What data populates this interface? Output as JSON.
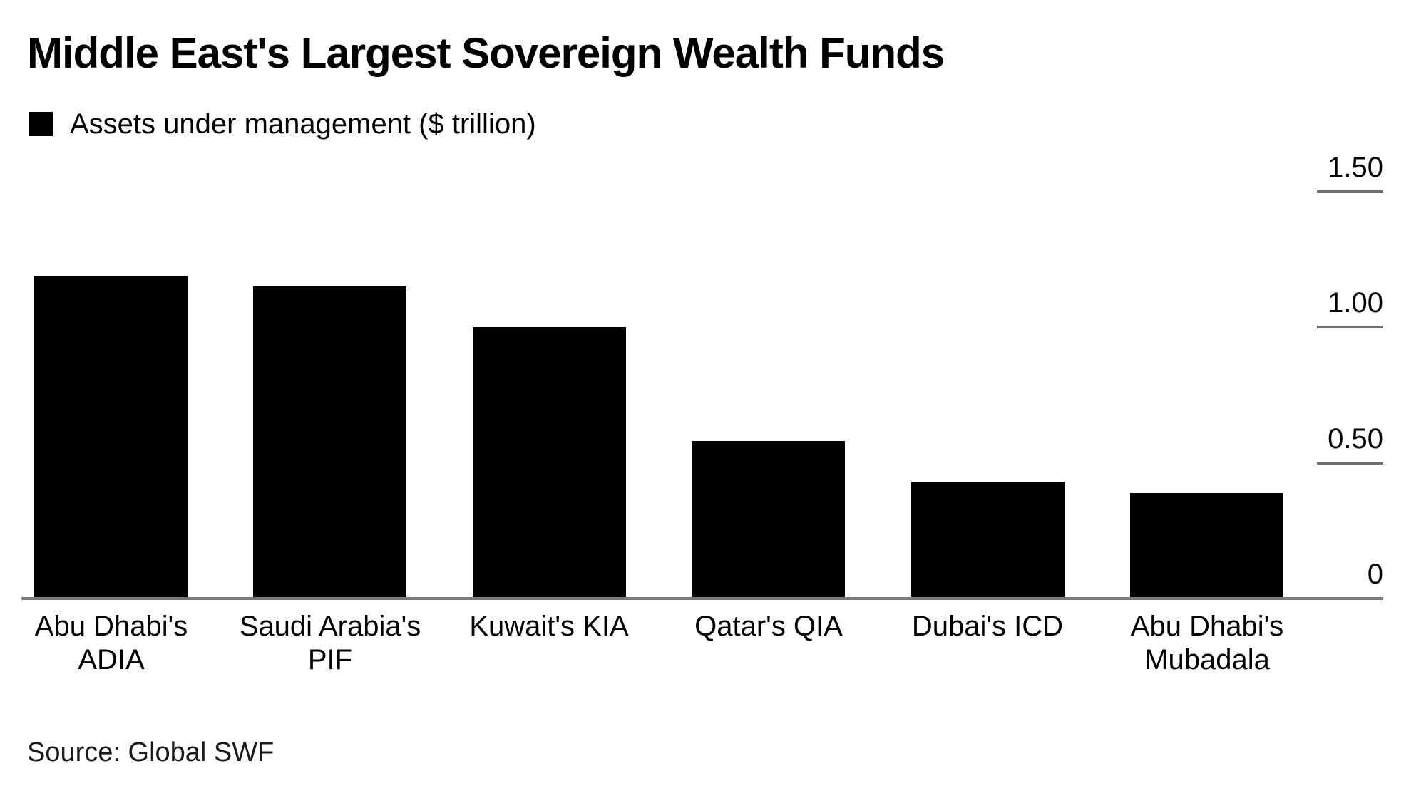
{
  "page": {
    "title": "Middle East's Largest Sovereign Wealth Funds",
    "source": "Source: Global SWF"
  },
  "legend": {
    "label": "Assets under management ($ trillion)",
    "swatch_color": "#000000"
  },
  "chart_data": {
    "type": "bar",
    "title": "Middle East's Largest Sovereign Wealth Funds",
    "series_label": "Assets under management ($ trillion)",
    "unit": "$ trillion",
    "categories": [
      "Abu Dhabi's ADIA",
      "Saudi Arabia's PIF",
      "Kuwait's KIA",
      "Qatar's QIA",
      "Dubai's ICD",
      "Abu Dhabi's Mubadala"
    ],
    "category_label_lines": [
      [
        "Abu Dhabi's",
        "ADIA"
      ],
      [
        "Saudi Arabia's",
        "PIF"
      ],
      [
        "Kuwait's KIA"
      ],
      [
        "Qatar's QIA"
      ],
      [
        "Dubai's ICD"
      ],
      [
        "Abu Dhabi's",
        "Mubadala"
      ]
    ],
    "values": [
      1.19,
      1.15,
      1.0,
      0.58,
      0.43,
      0.39
    ],
    "ylim": [
      0,
      1.5
    ],
    "yticks": [
      {
        "value": 0,
        "label": "0"
      },
      {
        "value": 0.5,
        "label": "0.50"
      },
      {
        "value": 1.0,
        "label": "1.00"
      },
      {
        "value": 1.5,
        "label": "1.50"
      }
    ],
    "axis_side": "right",
    "grid": false,
    "legend_position": "top-left",
    "bar_color": "#000000",
    "axis_line_color": "#7b7b7b",
    "source": "Source: Global SWF"
  }
}
